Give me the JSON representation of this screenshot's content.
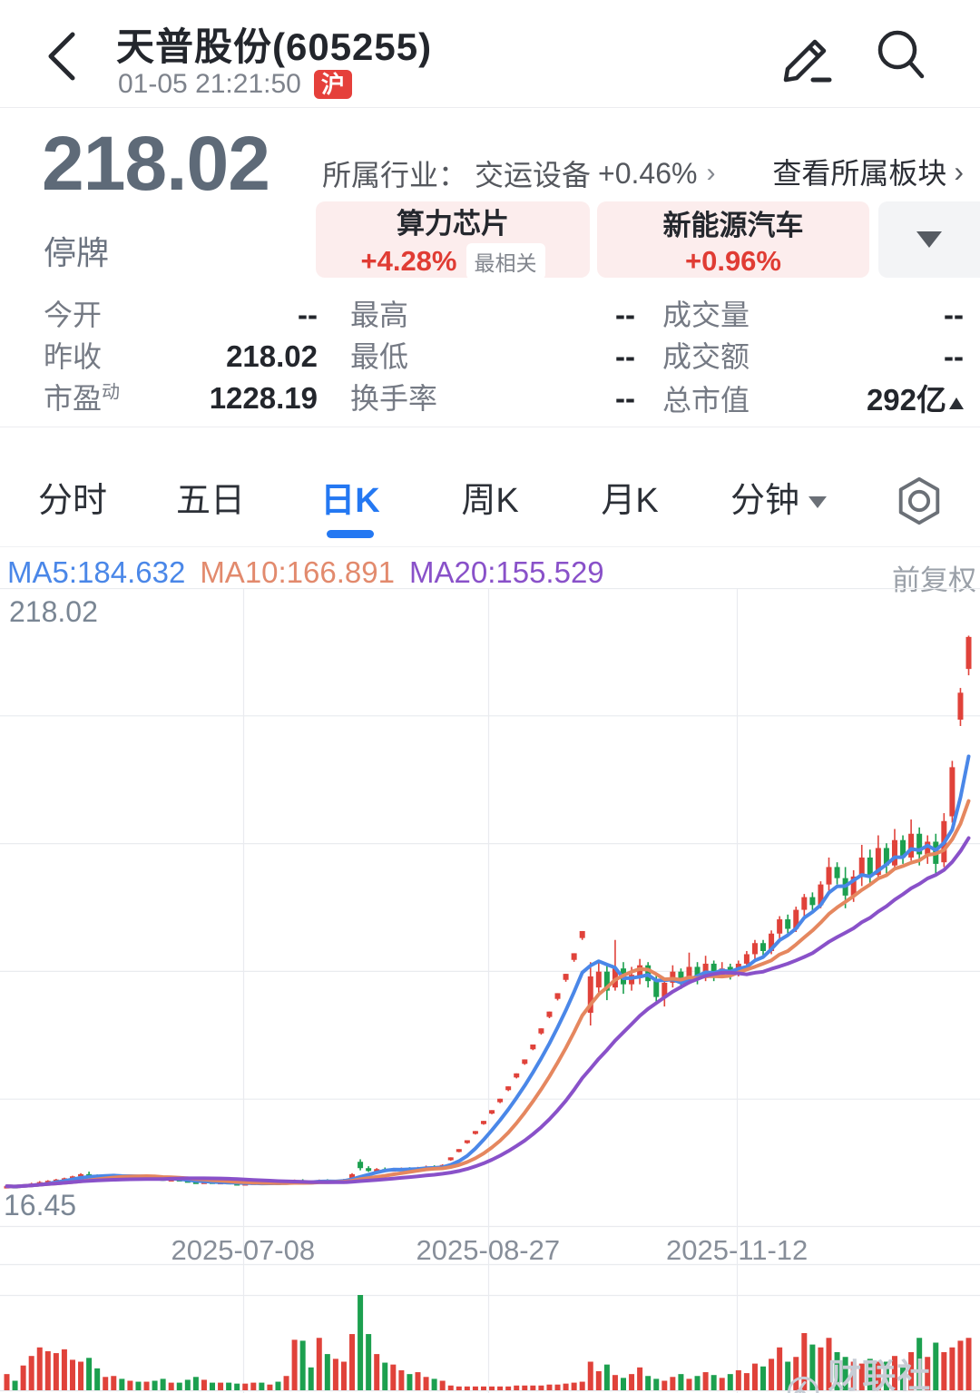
{
  "header": {
    "title": "天普股份(605255)",
    "time": "01-05 21:21:50",
    "market_badge": "沪"
  },
  "quote": {
    "price": "218.02",
    "status": "停牌",
    "industry_label": "所属行业：",
    "industry_name": "交运设备",
    "industry_change": "+0.46%",
    "industry_chevron": "›",
    "view_sector": "查看所属板块",
    "view_chevron": "›",
    "chips": [
      {
        "name": "算力芯片",
        "change": "+4.28%",
        "tag": "最相关"
      },
      {
        "name": "新能源汽车",
        "change": "+0.96%"
      }
    ]
  },
  "stats": {
    "rows": [
      [
        {
          "label": "今开",
          "value": "--"
        },
        {
          "label": "最高",
          "value": "--"
        },
        {
          "label": "成交量",
          "value": "--"
        }
      ],
      [
        {
          "label": "昨收",
          "value": "218.02"
        },
        {
          "label": "最低",
          "value": "--"
        },
        {
          "label": "成交额",
          "value": "--"
        }
      ],
      [
        {
          "label": "市盈",
          "label_sup": "动",
          "value": "1228.19"
        },
        {
          "label": "换手率",
          "value": "--"
        },
        {
          "label": "总市值",
          "value": "292亿"
        }
      ]
    ]
  },
  "tabs": {
    "items": [
      "分时",
      "五日",
      "日K",
      "周K",
      "月K",
      "分钟"
    ],
    "active_index": 2
  },
  "chart": {
    "ma_labels": [
      {
        "text": "MA5:184.632",
        "color": "#4a87e8"
      },
      {
        "text": "MA10:166.891",
        "color": "#e28a6d"
      },
      {
        "text": "MA20:155.529",
        "color": "#8951c9"
      }
    ],
    "adjust_label": "前复权",
    "y_axis": {
      "max_label": "218.02",
      "min_label": "16.45"
    },
    "x_ticks": [
      {
        "label": "2025-07-08",
        "pos": 0.248
      },
      {
        "label": "2025-08-27",
        "pos": 0.498
      },
      {
        "label": "2025-11-12",
        "pos": 0.752
      }
    ]
  },
  "watermark": {
    "text": "财联社APP"
  },
  "chart_data": {
    "type": "candlestick",
    "title": "天普股份(605255) 日K 前复权",
    "price_max": 218.02,
    "price_min": 16.45,
    "up_color": "#e0423a",
    "down_color": "#1ca04f",
    "ma_series": [
      {
        "period": 5,
        "color": "#4a87e8"
      },
      {
        "period": 10,
        "color": "#e5875f"
      },
      {
        "period": 20,
        "color": "#8951c9"
      }
    ],
    "candles": [
      [
        29.0,
        29.6,
        28.6,
        29.3,
        0.17
      ],
      [
        29.3,
        29.8,
        29.0,
        29.1,
        0.1
      ],
      [
        29.1,
        29.9,
        28.9,
        29.7,
        0.26
      ],
      [
        29.7,
        30.4,
        29.5,
        30.1,
        0.36
      ],
      [
        30.1,
        30.9,
        29.9,
        30.6,
        0.45
      ],
      [
        30.6,
        31.2,
        30.2,
        31.0,
        0.41
      ],
      [
        31.0,
        31.6,
        30.7,
        31.4,
        0.39
      ],
      [
        31.4,
        32.0,
        31.0,
        31.8,
        0.43
      ],
      [
        31.8,
        32.6,
        31.5,
        32.4,
        0.32
      ],
      [
        32.4,
        33.4,
        32.2,
        33.1,
        0.3
      ],
      [
        33.1,
        33.9,
        32.3,
        32.6,
        0.34
      ],
      [
        32.6,
        33.0,
        31.9,
        32.2,
        0.23
      ],
      [
        32.2,
        32.8,
        31.9,
        32.6,
        0.14
      ],
      [
        32.6,
        33.0,
        32.2,
        32.8,
        0.15
      ],
      [
        32.8,
        33.0,
        32.1,
        32.3,
        0.12
      ],
      [
        32.3,
        32.7,
        31.9,
        32.5,
        0.1
      ],
      [
        32.5,
        32.7,
        31.8,
        32.0,
        0.09
      ],
      [
        32.0,
        32.4,
        31.6,
        32.2,
        0.09
      ],
      [
        32.2,
        32.4,
        31.5,
        31.7,
        0.1
      ],
      [
        31.7,
        31.9,
        31.0,
        31.2,
        0.12
      ],
      [
        31.2,
        31.7,
        31.0,
        31.5,
        0.08
      ],
      [
        31.5,
        31.7,
        30.9,
        31.1,
        0.08
      ],
      [
        31.1,
        31.3,
        30.5,
        30.7,
        0.11
      ],
      [
        30.7,
        30.9,
        30.1,
        30.3,
        0.14
      ],
      [
        30.3,
        30.9,
        30.1,
        30.7,
        0.11
      ],
      [
        30.7,
        30.9,
        30.2,
        30.4,
        0.08
      ],
      [
        30.4,
        30.8,
        30.1,
        30.6,
        0.08
      ],
      [
        30.6,
        30.8,
        30.0,
        30.2,
        0.08
      ],
      [
        30.2,
        30.4,
        29.7,
        29.9,
        0.07
      ],
      [
        29.9,
        30.4,
        29.7,
        30.2,
        0.07
      ],
      [
        30.2,
        30.6,
        29.9,
        30.4,
        0.08
      ],
      [
        30.4,
        30.6,
        29.9,
        30.1,
        0.08
      ],
      [
        30.1,
        30.6,
        29.9,
        30.4,
        0.06
      ],
      [
        30.4,
        30.6,
        29.8,
        30.0,
        0.09
      ],
      [
        30.0,
        30.7,
        29.8,
        30.5,
        0.15
      ],
      [
        30.5,
        31.4,
        30.2,
        31.2,
        0.53
      ],
      [
        31.2,
        31.5,
        30.4,
        30.6,
        0.52
      ],
      [
        30.6,
        31.0,
        30.2,
        30.4,
        0.24
      ],
      [
        30.4,
        31.4,
        30.2,
        31.2,
        0.55
      ],
      [
        31.2,
        31.5,
        30.5,
        30.7,
        0.38
      ],
      [
        30.7,
        31.3,
        30.4,
        31.1,
        0.33
      ],
      [
        31.1,
        31.6,
        30.8,
        31.4,
        0.3
      ],
      [
        31.4,
        33.4,
        31.2,
        33.1,
        0.59
      ],
      [
        37.0,
        37.8,
        34.3,
        35.0,
        1.0
      ],
      [
        35.0,
        35.6,
        33.8,
        34.1,
        0.59
      ],
      [
        34.1,
        35.0,
        33.8,
        34.7,
        0.38
      ],
      [
        34.7,
        35.2,
        34.0,
        34.3,
        0.29
      ],
      [
        34.3,
        34.9,
        33.9,
        34.6,
        0.27
      ],
      [
        34.6,
        35.2,
        34.2,
        34.9,
        0.21
      ],
      [
        34.9,
        35.3,
        34.4,
        34.7,
        0.17
      ],
      [
        34.7,
        35.4,
        34.5,
        35.2,
        0.19
      ],
      [
        35.2,
        35.8,
        34.9,
        35.5,
        0.14
      ],
      [
        35.5,
        35.9,
        34.9,
        35.1,
        0.12
      ],
      [
        35.1,
        36.2,
        34.9,
        36.0,
        0.1
      ],
      [
        37.5,
        38.4,
        37.3,
        38.4,
        0.05
      ],
      [
        40.1,
        41.0,
        40.0,
        41.0,
        0.04
      ],
      [
        42.9,
        43.8,
        42.7,
        43.8,
        0.04
      ],
      [
        45.8,
        46.7,
        45.6,
        46.7,
        0.04
      ],
      [
        48.9,
        49.9,
        48.7,
        49.9,
        0.04
      ],
      [
        52.2,
        53.3,
        52.0,
        53.3,
        0.04
      ],
      [
        55.8,
        56.9,
        55.5,
        56.9,
        0.04
      ],
      [
        59.6,
        60.8,
        59.3,
        60.8,
        0.04
      ],
      [
        63.6,
        64.9,
        63.3,
        64.9,
        0.05
      ],
      [
        67.9,
        69.3,
        67.6,
        69.3,
        0.05
      ],
      [
        72.5,
        74.0,
        72.2,
        74.0,
        0.05
      ],
      [
        77.5,
        79.1,
        77.1,
        79.1,
        0.05
      ],
      [
        82.7,
        84.4,
        82.3,
        84.4,
        0.06
      ],
      [
        88.4,
        90.2,
        87.9,
        90.2,
        0.06
      ],
      [
        94.4,
        96.3,
        93.8,
        96.3,
        0.07
      ],
      [
        100.7,
        102.8,
        100.1,
        102.8,
        0.08
      ],
      [
        107.6,
        109.8,
        107.0,
        109.8,
        0.09
      ],
      [
        84.0,
        100.0,
        80.0,
        95.5,
        0.3
      ],
      [
        92.0,
        100.5,
        90.0,
        97.0,
        0.2
      ],
      [
        97.0,
        99.0,
        88.0,
        91.0,
        0.27
      ],
      [
        92.0,
        107.0,
        91.0,
        98.0,
        0.16
      ],
      [
        98.0,
        100.0,
        90.0,
        93.0,
        0.13
      ],
      [
        93.0,
        98.5,
        91.0,
        96.0,
        0.17
      ],
      [
        95.0,
        101.0,
        93.0,
        99.0,
        0.24
      ],
      [
        99.0,
        100.0,
        92.0,
        94.0,
        0.15
      ],
      [
        94.0,
        96.0,
        87.5,
        89.0,
        0.12
      ],
      [
        89.0,
        95.0,
        86.0,
        93.5,
        0.1
      ],
      [
        93.5,
        99.0,
        92.0,
        97.0,
        0.14
      ],
      [
        97.0,
        98.0,
        91.5,
        94.0,
        0.17
      ],
      [
        94.0,
        103.0,
        93.0,
        98.5,
        0.12
      ],
      [
        98.5,
        100.0,
        93.0,
        95.0,
        0.15
      ],
      [
        95.0,
        102.0,
        94.0,
        99.5,
        0.19
      ],
      [
        99.5,
        100.5,
        94.0,
        96.0,
        0.16
      ],
      [
        96.0,
        100.0,
        95.0,
        98.0,
        0.13
      ],
      [
        98.5,
        99.5,
        94.5,
        96.5,
        0.17
      ],
      [
        96.5,
        100.5,
        95.5,
        99.5,
        0.21
      ],
      [
        99.5,
        103.5,
        98.5,
        102.5,
        0.18
      ],
      [
        102.5,
        107.0,
        101.0,
        106.0,
        0.28
      ],
      [
        106.0,
        107.0,
        102.0,
        103.5,
        0.25
      ],
      [
        103.5,
        110.0,
        102.5,
        109.0,
        0.33
      ],
      [
        109.0,
        114.5,
        107.5,
        113.5,
        0.45
      ],
      [
        113.5,
        115.0,
        109.0,
        110.5,
        0.3
      ],
      [
        110.5,
        117.5,
        109.5,
        116.5,
        0.35
      ],
      [
        116.5,
        121.5,
        114.5,
        120.5,
        0.6
      ],
      [
        120.5,
        122.0,
        116.0,
        118.0,
        0.48
      ],
      [
        118.0,
        125.5,
        117.0,
        124.5,
        0.45
      ],
      [
        124.5,
        133.0,
        122.5,
        130.0,
        0.55
      ],
      [
        130.0,
        131.5,
        124.5,
        126.5,
        0.4
      ],
      [
        126.5,
        130.0,
        117.0,
        121.0,
        0.35
      ],
      [
        121.0,
        129.0,
        119.0,
        127.0,
        0.3
      ],
      [
        127.0,
        137.0,
        124.0,
        133.0,
        0.28
      ],
      [
        133.0,
        135.5,
        125.0,
        127.5,
        0.33
      ],
      [
        127.5,
        140.0,
        126.0,
        136.0,
        0.3
      ],
      [
        136.0,
        137.5,
        128.0,
        130.5,
        0.3
      ],
      [
        130.5,
        142.0,
        129.0,
        138.5,
        0.36
      ],
      [
        138.5,
        140.0,
        131.0,
        133.0,
        0.25
      ],
      [
        133.0,
        145.0,
        132.0,
        140.5,
        0.4
      ],
      [
        140.5,
        142.5,
        130.5,
        134.0,
        0.55
      ],
      [
        134.0,
        140.0,
        131.0,
        138.0,
        0.35
      ],
      [
        138.0,
        140.5,
        127.5,
        131.0,
        0.5
      ],
      [
        131.5,
        147.0,
        130.0,
        144.5,
        0.4
      ],
      [
        146.0,
        163.5,
        144.0,
        161.5,
        0.45
      ],
      [
        176.5,
        186.5,
        174.5,
        185.0,
        0.52
      ],
      [
        192.5,
        203.0,
        190.5,
        202.6,
        0.55
      ]
    ]
  }
}
